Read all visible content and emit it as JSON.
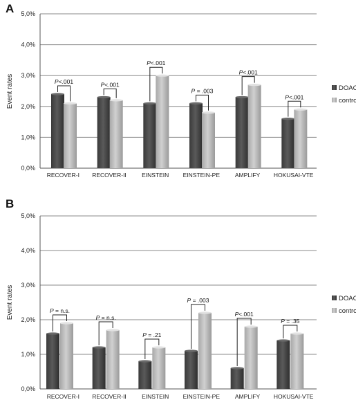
{
  "chart_data": [
    {
      "panel_label": "A",
      "type": "bar",
      "ylabel": "Event rates",
      "ylim": [
        0,
        5
      ],
      "yticks": [
        "0,0%",
        "1,0%",
        "2,0%",
        "3,0%",
        "4,0%",
        "5,0%"
      ],
      "grid": true,
      "legend_position": "right",
      "categories": [
        "RECOVER-I",
        "RECOVER-II",
        "EINSTEIN",
        "EINSTEIN-PE",
        "AMPLIFY",
        "HOKUSAI-VTE"
      ],
      "series": [
        {
          "name": "DOAC",
          "color": "#4a4a4a",
          "values": [
            2.4,
            2.3,
            2.1,
            2.1,
            2.3,
            1.6
          ]
        },
        {
          "name": "control",
          "color": "#b8b8b8",
          "values": [
            2.1,
            2.2,
            3.0,
            1.8,
            2.7,
            1.9
          ]
        }
      ],
      "p_values": [
        "P<.001",
        "P<.001",
        "P<.001",
        "P = .003",
        "P<.001",
        "P<.001"
      ]
    },
    {
      "panel_label": "B",
      "type": "bar",
      "ylabel": "Event rates",
      "ylim": [
        0,
        5
      ],
      "yticks": [
        "0,0%",
        "1,0%",
        "2,0%",
        "3,0%",
        "4,0%",
        "5,0%"
      ],
      "grid": true,
      "legend_position": "right",
      "categories": [
        "RECOVER-I",
        "RECOVER-II",
        "EINSTEIN",
        "EINSTEIN-PE",
        "AMPLIFY",
        "HOKUSAI-VTE"
      ],
      "series": [
        {
          "name": "DOAC",
          "color": "#4a4a4a",
          "values": [
            1.6,
            1.2,
            0.8,
            1.1,
            0.6,
            1.4
          ]
        },
        {
          "name": "contro",
          "color": "#b8b8b8",
          "values": [
            1.9,
            1.7,
            1.2,
            2.2,
            1.8,
            1.6
          ]
        }
      ],
      "p_values": [
        "P = n.s.",
        "P = n.s.",
        "P = .21",
        "P = .003",
        "P<.001",
        "P = .35"
      ]
    }
  ]
}
